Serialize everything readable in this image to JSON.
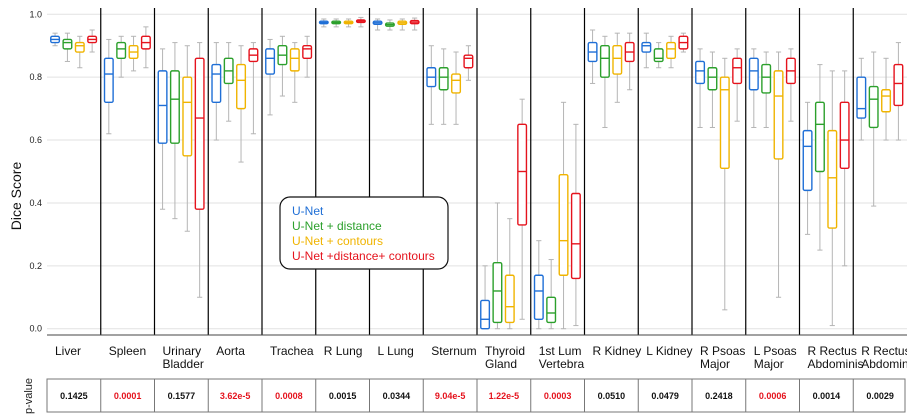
{
  "chart_data": {
    "type": "box",
    "ylabel": "Dice Score",
    "ylim": [
      -0.02,
      1.02
    ],
    "yticks": [
      "0.0",
      "0.2",
      "0.4",
      "0.6",
      "0.8",
      "1.0"
    ],
    "categories": [
      [
        "Liver"
      ],
      [
        "Spleen"
      ],
      [
        "Urinary",
        "Bladder"
      ],
      [
        "Aorta"
      ],
      [
        "Trachea"
      ],
      [
        "R Lung"
      ],
      [
        "L Lung"
      ],
      [
        "Sternum"
      ],
      [
        "Thyroid",
        "Gland"
      ],
      [
        "1st Lum",
        "Vertebra"
      ],
      [
        "R Kidney"
      ],
      [
        "L Kidney"
      ],
      [
        "R Psoas",
        "Major"
      ],
      [
        "L Psoas",
        "Major"
      ],
      [
        "R Rectus",
        "Abdominis"
      ],
      [
        "R Rectus",
        "Abdominis"
      ]
    ],
    "series": [
      {
        "name": "U-Net",
        "color": "#1f6fd6"
      },
      {
        "name": "U-Net + distance",
        "color": "#2ca02c"
      },
      {
        "name": "U-Net + contours",
        "color": "#f0b400"
      },
      {
        "name": "U-Net +distance+ contours",
        "color": "#e5131d"
      }
    ],
    "boxes": [
      [
        [
          0.9,
          0.91,
          0.92,
          0.93,
          0.94
        ],
        [
          0.85,
          0.89,
          0.91,
          0.92,
          0.94
        ],
        [
          0.83,
          0.88,
          0.9,
          0.91,
          0.93
        ],
        [
          0.88,
          0.91,
          0.92,
          0.93,
          0.95
        ]
      ],
      [
        [
          0.62,
          0.72,
          0.81,
          0.86,
          0.92
        ],
        [
          0.8,
          0.86,
          0.89,
          0.91,
          0.93
        ],
        [
          0.82,
          0.86,
          0.88,
          0.9,
          0.93
        ],
        [
          0.83,
          0.89,
          0.91,
          0.93,
          0.96
        ]
      ],
      [
        [
          0.38,
          0.59,
          0.71,
          0.82,
          0.89
        ],
        [
          0.35,
          0.59,
          0.73,
          0.82,
          0.91
        ],
        [
          0.31,
          0.55,
          0.72,
          0.8,
          0.9
        ],
        [
          0.1,
          0.38,
          0.67,
          0.86,
          0.91
        ]
      ],
      [
        [
          0.6,
          0.72,
          0.81,
          0.84,
          0.91
        ],
        [
          0.66,
          0.78,
          0.82,
          0.86,
          0.91
        ],
        [
          0.53,
          0.7,
          0.79,
          0.84,
          0.9
        ],
        [
          0.62,
          0.85,
          0.87,
          0.89,
          0.91
        ]
      ],
      [
        [
          0.68,
          0.81,
          0.86,
          0.89,
          0.92
        ],
        [
          0.74,
          0.84,
          0.87,
          0.9,
          0.93
        ],
        [
          0.72,
          0.82,
          0.86,
          0.89,
          0.91
        ],
        [
          0.8,
          0.86,
          0.89,
          0.9,
          0.93
        ]
      ],
      [
        [
          0.96,
          0.97,
          0.974,
          0.978,
          0.985
        ],
        [
          0.96,
          0.97,
          0.974,
          0.978,
          0.985
        ],
        [
          0.96,
          0.97,
          0.974,
          0.978,
          0.985
        ],
        [
          0.96,
          0.974,
          0.978,
          0.982,
          0.99
        ]
      ],
      [
        [
          0.95,
          0.968,
          0.973,
          0.978,
          0.985
        ],
        [
          0.95,
          0.962,
          0.967,
          0.972,
          0.982
        ],
        [
          0.95,
          0.968,
          0.973,
          0.978,
          0.985
        ],
        [
          0.95,
          0.97,
          0.975,
          0.98,
          0.988
        ]
      ],
      [
        [
          0.65,
          0.77,
          0.8,
          0.83,
          0.9
        ],
        [
          0.65,
          0.76,
          0.8,
          0.83,
          0.89
        ],
        [
          0.65,
          0.75,
          0.79,
          0.81,
          0.88
        ],
        [
          0.79,
          0.83,
          0.86,
          0.87,
          0.9
        ]
      ],
      [
        [
          0.0,
          0.0,
          0.03,
          0.09,
          0.2
        ],
        [
          0.0,
          0.02,
          0.12,
          0.21,
          0.4
        ],
        [
          0.0,
          0.02,
          0.07,
          0.17,
          0.35
        ],
        [
          0.03,
          0.33,
          0.5,
          0.65,
          0.73
        ]
      ],
      [
        [
          0.0,
          0.03,
          0.12,
          0.17,
          0.28
        ],
        [
          0.0,
          0.02,
          0.05,
          0.1,
          0.22
        ],
        [
          0.0,
          0.17,
          0.28,
          0.49,
          0.72
        ],
        [
          0.01,
          0.16,
          0.27,
          0.43,
          0.65
        ]
      ],
      [
        [
          0.78,
          0.85,
          0.88,
          0.91,
          0.95
        ],
        [
          0.64,
          0.8,
          0.86,
          0.9,
          0.93
        ],
        [
          0.72,
          0.81,
          0.86,
          0.9,
          0.94
        ],
        [
          0.76,
          0.85,
          0.88,
          0.91,
          0.94
        ]
      ],
      [
        [
          0.83,
          0.88,
          0.9,
          0.91,
          0.94
        ],
        [
          0.83,
          0.85,
          0.86,
          0.89,
          0.91
        ],
        [
          0.83,
          0.86,
          0.89,
          0.91,
          0.93
        ],
        [
          0.88,
          0.89,
          0.91,
          0.93,
          0.94
        ]
      ],
      [
        [
          0.64,
          0.78,
          0.82,
          0.85,
          0.89
        ],
        [
          0.64,
          0.76,
          0.8,
          0.83,
          0.88
        ],
        [
          0.06,
          0.51,
          0.76,
          0.8,
          0.86
        ],
        [
          0.66,
          0.78,
          0.83,
          0.86,
          0.89
        ]
      ],
      [
        [
          0.64,
          0.76,
          0.82,
          0.86,
          0.89
        ],
        [
          0.64,
          0.75,
          0.8,
          0.84,
          0.88
        ],
        [
          0.1,
          0.54,
          0.74,
          0.82,
          0.88
        ],
        [
          0.66,
          0.78,
          0.82,
          0.86,
          0.89
        ]
      ],
      [
        [
          0.3,
          0.44,
          0.58,
          0.63,
          0.72
        ],
        [
          0.25,
          0.5,
          0.65,
          0.72,
          0.84
        ],
        [
          0.01,
          0.32,
          0.48,
          0.63,
          0.82
        ],
        [
          0.2,
          0.51,
          0.6,
          0.72,
          0.82
        ]
      ],
      [
        [
          0.6,
          0.67,
          0.7,
          0.8,
          0.86
        ],
        [
          0.39,
          0.64,
          0.73,
          0.77,
          0.88
        ],
        [
          0.6,
          0.69,
          0.74,
          0.76,
          0.86
        ],
        [
          0.6,
          0.71,
          0.78,
          0.84,
          0.91
        ]
      ]
    ],
    "legend": {
      "placement": "center"
    }
  },
  "pvalue": {
    "label": "p-value",
    "values": [
      "0.1425",
      "0.0001",
      "0.1577",
      "3.62e-5",
      "0.0008",
      "0.0015",
      "0.0344",
      "9.04e-5",
      "1.22e-5",
      "0.0003",
      "0.0510",
      "0.0479",
      "0.2418",
      "0.0006",
      "0.0014",
      "0.0029"
    ],
    "significant": [
      false,
      true,
      false,
      true,
      true,
      false,
      false,
      true,
      true,
      true,
      false,
      false,
      false,
      true,
      false,
      false
    ],
    "sig_color": "#e5131d",
    "normal_color": "#111111"
  }
}
